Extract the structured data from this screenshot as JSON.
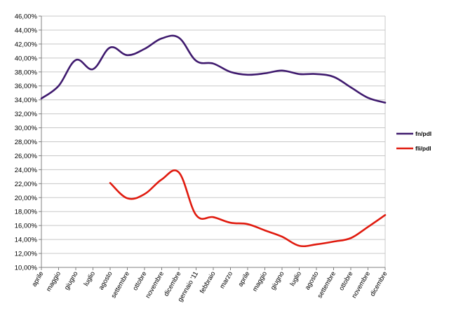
{
  "chart_data": {
    "type": "line",
    "title": "",
    "xlabel": "",
    "ylabel": "",
    "categories": [
      "aprile",
      "maggio",
      "giugno",
      "luglio",
      "agosto",
      "settembre",
      "ottobre",
      "novembre",
      "dicembre",
      "gennaio '11",
      "febbraio",
      "marzo",
      "aprile",
      "maggio",
      "giugno",
      "luglio",
      "agosto",
      "settembre",
      "ottobre",
      "novembre",
      "dicembre"
    ],
    "yticks": [
      "10,00%",
      "12,00%",
      "14,00%",
      "16,00%",
      "18,00%",
      "20,00%",
      "22,00%",
      "24,00%",
      "26,00%",
      "28,00%",
      "30,00%",
      "32,00%",
      "34,00%",
      "36,00%",
      "38,00%",
      "40,00%",
      "42,00%",
      "44,00%",
      "46,00%"
    ],
    "ylim": [
      10,
      46
    ],
    "y_tick_step": 2,
    "grid": true,
    "legend_position": "right",
    "series": [
      {
        "name": "fn/pdl",
        "color": "#3f1a6e",
        "values": [
          34.2,
          36.0,
          39.7,
          38.4,
          41.5,
          40.4,
          41.3,
          42.8,
          42.9,
          39.6,
          39.2,
          38.0,
          37.6,
          37.8,
          38.2,
          37.7,
          37.7,
          37.3,
          35.8,
          34.3,
          33.6
        ]
      },
      {
        "name": "fli/pdl",
        "color": "#e01a0e",
        "values": [
          null,
          null,
          null,
          null,
          22.1,
          19.9,
          20.5,
          22.6,
          23.6,
          17.5,
          17.2,
          16.4,
          16.2,
          15.3,
          14.4,
          13.1,
          13.3,
          13.7,
          14.2,
          15.8,
          17.5
        ]
      }
    ]
  }
}
